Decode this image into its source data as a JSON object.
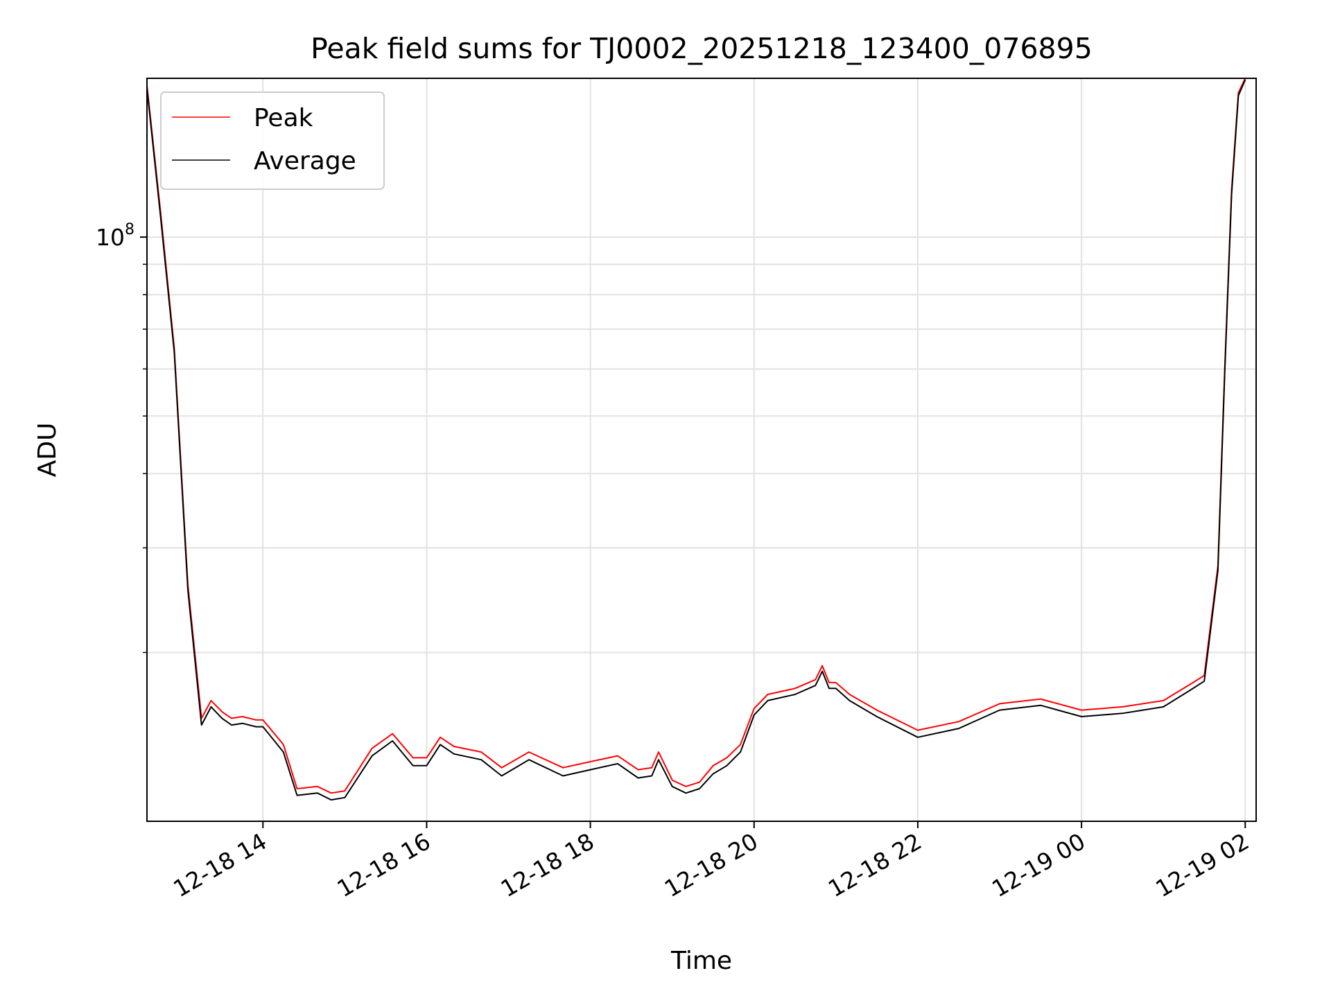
{
  "chart_data": {
    "type": "line",
    "title": "Peak field sums for TJ0002_20251218_123400_076895",
    "xlabel": "Time",
    "ylabel": "ADU",
    "yscale": "log",
    "grid": true,
    "legend_position": "top-left",
    "x_range": [
      "2025-12-18 12:35",
      "2025-12-19 02:08"
    ],
    "y_range": [
      10400000,
      185000000
    ],
    "x_ticks": [
      {
        "label": "12-18 14",
        "value": "2025-12-18 14:00"
      },
      {
        "label": "12-18 16",
        "value": "2025-12-18 16:00"
      },
      {
        "label": "12-18 18",
        "value": "2025-12-18 18:00"
      },
      {
        "label": "12-18 20",
        "value": "2025-12-18 20:00"
      },
      {
        "label": "12-18 22",
        "value": "2025-12-18 22:00"
      },
      {
        "label": "12-19 00",
        "value": "2025-12-19 00:00"
      },
      {
        "label": "12-19 02",
        "value": "2025-12-19 02:00"
      }
    ],
    "y_major_ticks": [
      {
        "value": 100000000,
        "base": "10",
        "exponent": "8"
      }
    ],
    "y_minor_ticks": [
      20000000,
      30000000,
      40000000,
      50000000,
      60000000,
      70000000,
      80000000,
      90000000
    ],
    "series": [
      {
        "name": "Peak",
        "color": "#ff0000",
        "x": [
          "2025-12-18 12:35",
          "2025-12-18 12:45",
          "2025-12-18 12:55",
          "2025-12-18 13:05",
          "2025-12-18 13:15",
          "2025-12-18 13:22",
          "2025-12-18 13:30",
          "2025-12-18 13:37",
          "2025-12-18 13:45",
          "2025-12-18 13:55",
          "2025-12-18 14:00",
          "2025-12-18 14:15",
          "2025-12-18 14:25",
          "2025-12-18 14:40",
          "2025-12-18 14:50",
          "2025-12-18 15:00",
          "2025-12-18 15:20",
          "2025-12-18 15:35",
          "2025-12-18 15:50",
          "2025-12-18 16:00",
          "2025-12-18 16:10",
          "2025-12-18 16:20",
          "2025-12-18 16:40",
          "2025-12-18 16:55",
          "2025-12-18 17:15",
          "2025-12-18 17:40",
          "2025-12-18 18:00",
          "2025-12-18 18:20",
          "2025-12-18 18:35",
          "2025-12-18 18:45",
          "2025-12-18 18:50",
          "2025-12-18 19:00",
          "2025-12-18 19:10",
          "2025-12-18 19:20",
          "2025-12-18 19:30",
          "2025-12-18 19:40",
          "2025-12-18 19:50",
          "2025-12-18 20:00",
          "2025-12-18 20:10",
          "2025-12-18 20:30",
          "2025-12-18 20:45",
          "2025-12-18 20:50",
          "2025-12-18 20:55",
          "2025-12-18 21:00",
          "2025-12-18 21:10",
          "2025-12-18 21:30",
          "2025-12-18 22:00",
          "2025-12-18 22:30",
          "2025-12-18 23:00",
          "2025-12-18 23:30",
          "2025-12-19 00:00",
          "2025-12-19 00:30",
          "2025-12-19 01:00",
          "2025-12-19 01:20",
          "2025-12-19 01:30",
          "2025-12-19 01:40",
          "2025-12-19 01:45",
          "2025-12-19 01:50",
          "2025-12-19 01:55",
          "2025-12-19 02:00"
        ],
        "values": [
          180000000,
          110000000,
          65000000,
          26000000,
          15500000,
          16600000,
          15900000,
          15500000,
          15600000,
          15400000,
          15400000,
          14000000,
          11800000,
          11900000,
          11600000,
          11700000,
          13800000,
          14600000,
          13300000,
          13300000,
          14400000,
          13900000,
          13600000,
          12800000,
          13600000,
          12800000,
          13100000,
          13400000,
          12700000,
          12800000,
          13600000,
          12200000,
          11900000,
          12100000,
          12900000,
          13300000,
          14000000,
          16100000,
          17000000,
          17400000,
          18000000,
          19000000,
          17800000,
          17800000,
          17000000,
          16000000,
          14800000,
          15300000,
          16400000,
          16700000,
          16000000,
          16200000,
          16600000,
          17700000,
          18300000,
          28000000,
          60000000,
          120000000,
          175000000,
          185000000
        ]
      },
      {
        "name": "Average",
        "color": "#000000",
        "x": [
          "2025-12-18 12:35",
          "2025-12-18 12:45",
          "2025-12-18 12:55",
          "2025-12-18 13:05",
          "2025-12-18 13:15",
          "2025-12-18 13:22",
          "2025-12-18 13:30",
          "2025-12-18 13:37",
          "2025-12-18 13:45",
          "2025-12-18 13:55",
          "2025-12-18 14:00",
          "2025-12-18 14:15",
          "2025-12-18 14:25",
          "2025-12-18 14:40",
          "2025-12-18 14:50",
          "2025-12-18 15:00",
          "2025-12-18 15:20",
          "2025-12-18 15:35",
          "2025-12-18 15:50",
          "2025-12-18 16:00",
          "2025-12-18 16:10",
          "2025-12-18 16:20",
          "2025-12-18 16:40",
          "2025-12-18 16:55",
          "2025-12-18 17:15",
          "2025-12-18 17:40",
          "2025-12-18 18:00",
          "2025-12-18 18:20",
          "2025-12-18 18:35",
          "2025-12-18 18:45",
          "2025-12-18 18:50",
          "2025-12-18 19:00",
          "2025-12-18 19:10",
          "2025-12-18 19:20",
          "2025-12-18 19:30",
          "2025-12-18 19:40",
          "2025-12-18 19:50",
          "2025-12-18 20:00",
          "2025-12-18 20:10",
          "2025-12-18 20:30",
          "2025-12-18 20:45",
          "2025-12-18 20:50",
          "2025-12-18 20:55",
          "2025-12-18 21:00",
          "2025-12-18 21:10",
          "2025-12-18 21:30",
          "2025-12-18 22:00",
          "2025-12-18 22:30",
          "2025-12-18 23:00",
          "2025-12-18 23:30",
          "2025-12-19 00:00",
          "2025-12-19 00:30",
          "2025-12-19 01:00",
          "2025-12-19 01:20",
          "2025-12-19 01:30",
          "2025-12-19 01:40",
          "2025-12-19 01:45",
          "2025-12-19 01:50",
          "2025-12-19 01:55",
          "2025-12-19 02:00"
        ],
        "values": [
          178000000,
          108000000,
          64000000,
          25500000,
          15100000,
          16200000,
          15500000,
          15100000,
          15200000,
          15000000,
          15000000,
          13600000,
          11500000,
          11600000,
          11300000,
          11400000,
          13400000,
          14200000,
          12900000,
          12900000,
          14000000,
          13500000,
          13200000,
          12400000,
          13200000,
          12400000,
          12700000,
          13000000,
          12300000,
          12400000,
          13200000,
          11900000,
          11600000,
          11800000,
          12500000,
          12900000,
          13600000,
          15700000,
          16600000,
          17000000,
          17600000,
          18600000,
          17400000,
          17400000,
          16600000,
          15600000,
          14400000,
          14900000,
          16000000,
          16300000,
          15600000,
          15800000,
          16200000,
          17300000,
          17900000,
          27500000,
          59000000,
          118000000,
          173000000,
          184000000
        ]
      }
    ]
  }
}
